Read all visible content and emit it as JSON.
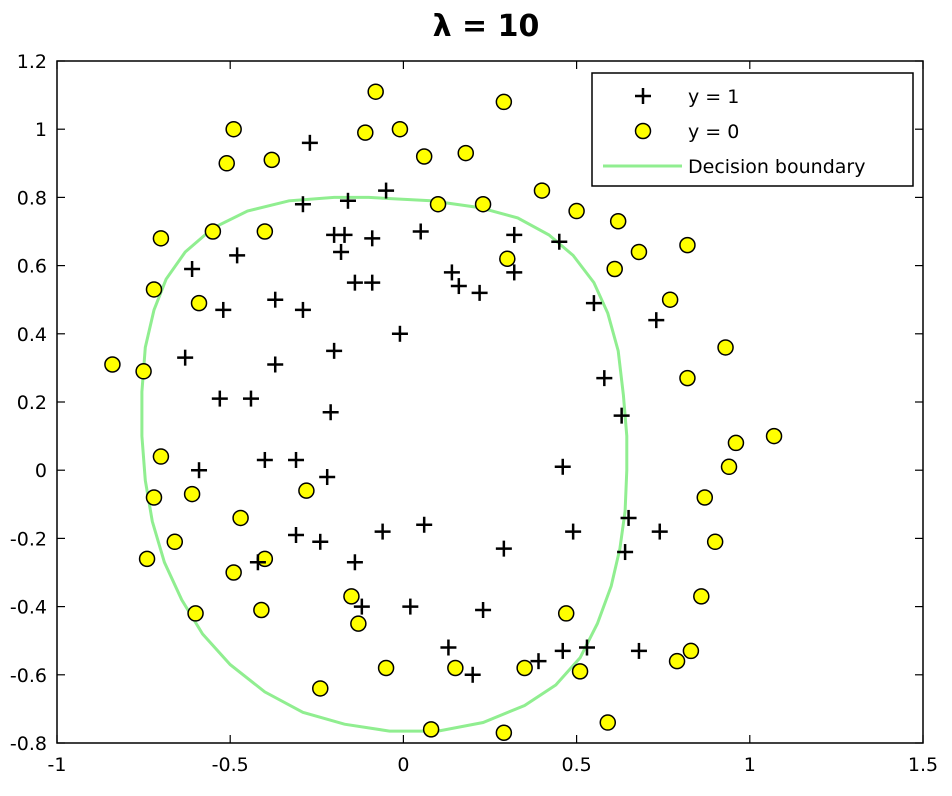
{
  "chart_data": {
    "type": "scatter",
    "title": "λ = 10",
    "xlabel": "",
    "ylabel": "",
    "xlim": [
      -1,
      1.5
    ],
    "ylim": [
      -0.8,
      1.2
    ],
    "x_ticks": [
      -1,
      -0.5,
      0,
      0.5,
      1,
      1.5
    ],
    "x_tick_labels": [
      "-1",
      "-0.5",
      "0",
      "0.5",
      "1",
      "1.5"
    ],
    "y_ticks": [
      -0.8,
      -0.6,
      -0.4,
      -0.2,
      0,
      0.2,
      0.4,
      0.6,
      0.8,
      1,
      1.2
    ],
    "y_tick_labels": [
      "-0.8",
      "-0.6",
      "-0.4",
      "-0.2",
      "0",
      "0.2",
      "0.4",
      "0.6",
      "0.8",
      "1",
      "1.2"
    ],
    "grid": false,
    "legend_position": "top-right",
    "colors": {
      "positive": "#000000",
      "negative_fill": "#ffff00",
      "negative_edge": "#000000",
      "boundary": "#90ee90"
    },
    "series": [
      {
        "name": "y = 1",
        "marker": "plus",
        "points": [
          [
            -0.27,
            0.96
          ],
          [
            -0.29,
            0.78
          ],
          [
            -0.16,
            0.79
          ],
          [
            -0.05,
            0.82
          ],
          [
            -0.2,
            0.69
          ],
          [
            -0.17,
            0.69
          ],
          [
            -0.09,
            0.68
          ],
          [
            0.05,
            0.7
          ],
          [
            -0.18,
            0.64
          ],
          [
            0.32,
            0.69
          ],
          [
            0.45,
            0.67
          ],
          [
            -0.48,
            0.63
          ],
          [
            -0.61,
            0.59
          ],
          [
            0.14,
            0.58
          ],
          [
            0.16,
            0.54
          ],
          [
            0.22,
            0.52
          ],
          [
            0.32,
            0.58
          ],
          [
            -0.09,
            0.55
          ],
          [
            -0.14,
            0.55
          ],
          [
            -0.37,
            0.5
          ],
          [
            -0.52,
            0.47
          ],
          [
            -0.29,
            0.47
          ],
          [
            0.55,
            0.49
          ],
          [
            0.73,
            0.44
          ],
          [
            -0.01,
            0.4
          ],
          [
            -0.2,
            0.35
          ],
          [
            -0.63,
            0.33
          ],
          [
            -0.37,
            0.31
          ],
          [
            0.58,
            0.27
          ],
          [
            -0.53,
            0.21
          ],
          [
            -0.44,
            0.21
          ],
          [
            -0.21,
            0.17
          ],
          [
            0.63,
            0.16
          ],
          [
            -0.4,
            0.03
          ],
          [
            -0.31,
            0.03
          ],
          [
            -0.59,
            0.0
          ],
          [
            0.46,
            0.01
          ],
          [
            -0.22,
            -0.02
          ],
          [
            -0.31,
            -0.19
          ],
          [
            -0.24,
            -0.21
          ],
          [
            -0.06,
            -0.18
          ],
          [
            0.06,
            -0.16
          ],
          [
            0.29,
            -0.23
          ],
          [
            0.49,
            -0.18
          ],
          [
            0.65,
            -0.14
          ],
          [
            0.74,
            -0.18
          ],
          [
            0.64,
            -0.24
          ],
          [
            -0.42,
            -0.27
          ],
          [
            -0.14,
            -0.27
          ],
          [
            -0.12,
            -0.4
          ],
          [
            0.02,
            -0.4
          ],
          [
            0.23,
            -0.41
          ],
          [
            0.13,
            -0.52
          ],
          [
            0.2,
            -0.6
          ],
          [
            0.39,
            -0.56
          ],
          [
            0.46,
            -0.53
          ],
          [
            0.53,
            -0.52
          ],
          [
            0.68,
            -0.53
          ]
        ]
      },
      {
        "name": "y = 0",
        "marker": "circle",
        "points": [
          [
            -0.08,
            1.11
          ],
          [
            0.29,
            1.08
          ],
          [
            -0.49,
            1.0
          ],
          [
            -0.11,
            0.99
          ],
          [
            -0.01,
            1.0
          ],
          [
            -0.51,
            0.9
          ],
          [
            -0.38,
            0.91
          ],
          [
            0.06,
            0.92
          ],
          [
            0.18,
            0.93
          ],
          [
            0.4,
            0.82
          ],
          [
            0.1,
            0.78
          ],
          [
            0.23,
            0.78
          ],
          [
            0.5,
            0.76
          ],
          [
            0.62,
            0.73
          ],
          [
            -0.55,
            0.7
          ],
          [
            -0.4,
            0.7
          ],
          [
            -0.7,
            0.68
          ],
          [
            0.68,
            0.64
          ],
          [
            0.82,
            0.66
          ],
          [
            0.3,
            0.62
          ],
          [
            0.61,
            0.59
          ],
          [
            -0.72,
            0.53
          ],
          [
            -0.59,
            0.49
          ],
          [
            0.77,
            0.5
          ],
          [
            0.93,
            0.36
          ],
          [
            -0.84,
            0.31
          ],
          [
            -0.75,
            0.29
          ],
          [
            0.82,
            0.27
          ],
          [
            0.96,
            0.08
          ],
          [
            1.07,
            0.1
          ],
          [
            -0.7,
            0.04
          ],
          [
            0.94,
            0.01
          ],
          [
            -0.72,
            -0.08
          ],
          [
            -0.61,
            -0.07
          ],
          [
            -0.28,
            -0.06
          ],
          [
            0.87,
            -0.08
          ],
          [
            -0.47,
            -0.14
          ],
          [
            -0.66,
            -0.21
          ],
          [
            0.9,
            -0.21
          ],
          [
            -0.74,
            -0.26
          ],
          [
            -0.4,
            -0.26
          ],
          [
            -0.49,
            -0.3
          ],
          [
            -0.15,
            -0.37
          ],
          [
            0.86,
            -0.37
          ],
          [
            -0.6,
            -0.42
          ],
          [
            -0.41,
            -0.41
          ],
          [
            0.47,
            -0.42
          ],
          [
            -0.13,
            -0.45
          ],
          [
            0.83,
            -0.53
          ],
          [
            0.79,
            -0.56
          ],
          [
            -0.05,
            -0.58
          ],
          [
            0.15,
            -0.58
          ],
          [
            0.35,
            -0.58
          ],
          [
            0.51,
            -0.59
          ],
          [
            -0.24,
            -0.64
          ],
          [
            0.59,
            -0.74
          ],
          [
            0.08,
            -0.76
          ],
          [
            0.29,
            -0.77
          ]
        ]
      },
      {
        "name": "Decision boundary",
        "marker": "line",
        "points": [
          [
            -0.1,
            0.8
          ],
          [
            0.08,
            0.79
          ],
          [
            0.22,
            0.77
          ],
          [
            0.33,
            0.74
          ],
          [
            0.42,
            0.69
          ],
          [
            0.49,
            0.63
          ],
          [
            0.55,
            0.55
          ],
          [
            0.59,
            0.46
          ],
          [
            0.62,
            0.35
          ],
          [
            0.635,
            0.22
          ],
          [
            0.645,
            0.1
          ],
          [
            0.645,
            0.0
          ],
          [
            0.64,
            -0.12
          ],
          [
            0.625,
            -0.23
          ],
          [
            0.6,
            -0.34
          ],
          [
            0.56,
            -0.45
          ],
          [
            0.51,
            -0.55
          ],
          [
            0.44,
            -0.63
          ],
          [
            0.35,
            -0.69
          ],
          [
            0.23,
            -0.74
          ],
          [
            0.1,
            -0.765
          ],
          [
            -0.04,
            -0.765
          ],
          [
            -0.17,
            -0.745
          ],
          [
            -0.29,
            -0.71
          ],
          [
            -0.4,
            -0.65
          ],
          [
            -0.5,
            -0.57
          ],
          [
            -0.58,
            -0.48
          ],
          [
            -0.64,
            -0.38
          ],
          [
            -0.69,
            -0.27
          ],
          [
            -0.725,
            -0.15
          ],
          [
            -0.745,
            -0.03
          ],
          [
            -0.755,
            0.1
          ],
          [
            -0.755,
            0.23
          ],
          [
            -0.745,
            0.36
          ],
          [
            -0.72,
            0.47
          ],
          [
            -0.685,
            0.56
          ],
          [
            -0.63,
            0.64
          ],
          [
            -0.55,
            0.71
          ],
          [
            -0.45,
            0.76
          ],
          [
            -0.33,
            0.79
          ],
          [
            -0.2,
            0.8
          ],
          [
            -0.1,
            0.8
          ]
        ]
      }
    ]
  }
}
